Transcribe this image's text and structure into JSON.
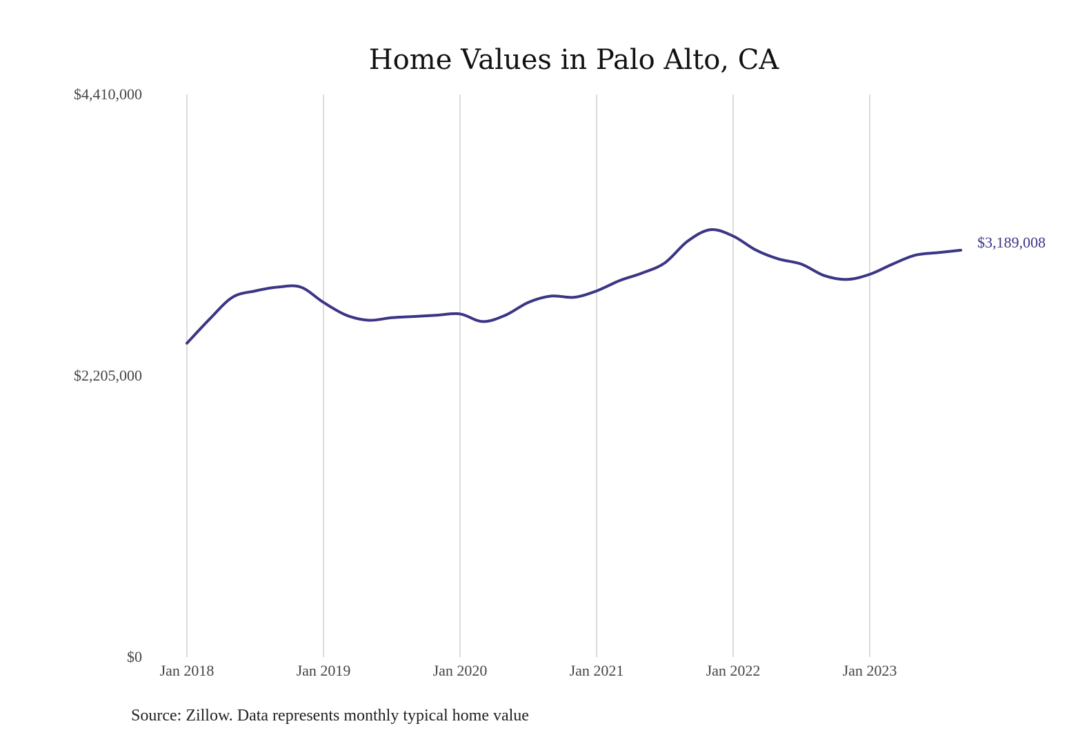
{
  "chart_data": {
    "type": "line",
    "title": "Home Values in Palo Alto, CA",
    "xlabel": "",
    "ylabel": "",
    "ylim": [
      0,
      4410000
    ],
    "y_ticks": [
      {
        "value": 4410000,
        "label": "$4,410,000"
      },
      {
        "value": 2205000,
        "label": "$2,205,000"
      },
      {
        "value": 0,
        "label": "$0"
      }
    ],
    "x_ticks": [
      "Jan 2018",
      "Jan 2019",
      "Jan 2020",
      "Jan 2021",
      "Jan 2022",
      "Jan 2023"
    ],
    "x_range_months": [
      0,
      68
    ],
    "grid": {
      "vertical": true,
      "horizontal": false
    },
    "legend": "none",
    "series": [
      {
        "color": "#3b3585",
        "x_months": [
          0,
          2,
          4,
          6,
          8,
          10,
          12,
          14,
          16,
          18,
          20,
          22,
          24,
          26,
          28,
          30,
          32,
          34,
          36,
          38,
          40,
          42,
          44,
          46,
          48,
          50,
          52,
          54,
          56,
          58,
          60,
          62,
          64,
          66,
          68
        ],
        "values": [
          2460000,
          2650000,
          2820000,
          2870000,
          2900000,
          2900000,
          2780000,
          2680000,
          2640000,
          2660000,
          2670000,
          2680000,
          2690000,
          2630000,
          2680000,
          2780000,
          2830000,
          2820000,
          2870000,
          2950000,
          3010000,
          3090000,
          3260000,
          3350000,
          3300000,
          3190000,
          3120000,
          3080000,
          2990000,
          2960000,
          3000000,
          3080000,
          3150000,
          3170000,
          3189008
        ]
      }
    ],
    "end_label": "$3,189,008"
  },
  "source_note": "Source: Zillow. Data represents monthly typical home value"
}
